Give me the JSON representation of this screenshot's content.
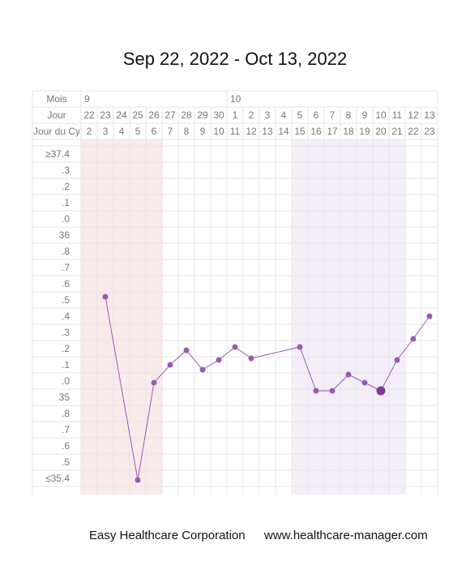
{
  "header": {
    "title": "Sep 22, 2022 - Oct 13, 2022"
  },
  "footer": {
    "company": "Easy Healthcare Corporation",
    "website": "www.healthcare-manager.com"
  },
  "colors": {
    "series": "#9b59b6",
    "period_band": "#fbeaea",
    "fertile_band": "#f3eef8",
    "grid": "#e6e6e6",
    "label": "#777777"
  },
  "chart_data": {
    "type": "line",
    "title": "Sep 22, 2022 - Oct 13, 2022",
    "row_labels": [
      "Mois",
      "Jour",
      "Jour du Cy"
    ],
    "month_labels": [
      {
        "col": 0,
        "label": "9"
      },
      {
        "col": 9,
        "label": "10"
      }
    ],
    "days": [
      "22",
      "23",
      "24",
      "25",
      "26",
      "27",
      "28",
      "29",
      "30",
      "1",
      "2",
      "3",
      "4",
      "5",
      "6",
      "7",
      "8",
      "9",
      "10",
      "11",
      "12",
      "13"
    ],
    "cycle_days": [
      "2",
      "3",
      "4",
      "5",
      "6",
      "7",
      "8",
      "9",
      "10",
      "11",
      "12",
      "13",
      "14",
      "15",
      "16",
      "17",
      "18",
      "19",
      "20",
      "21",
      "22",
      "23"
    ],
    "y_tick_labels": [
      "≥37.4",
      ".3",
      ".2",
      ".1",
      ".0",
      "36",
      ".8",
      ".7",
      ".6",
      ".5",
      ".4",
      ".3",
      ".2",
      ".1",
      ".0",
      "35",
      ".8",
      ".7",
      ".6",
      ".5",
      "≤35.4"
    ],
    "ylim": [
      35.4,
      37.4
    ],
    "series": [
      {
        "values": [
          null,
          36.52,
          null,
          35.39,
          35.99,
          36.1,
          36.19,
          36.07,
          36.13,
          36.21,
          36.14,
          null,
          null,
          36.21,
          35.94,
          35.94,
          36.04,
          35.99,
          35.94,
          36.13,
          36.26,
          36.4
        ],
        "highlight_index": 18
      }
    ],
    "shaded_ranges": [
      {
        "kind": "period",
        "from": 0,
        "to": 4
      },
      {
        "kind": "fertile",
        "from": 13,
        "to": 19
      }
    ],
    "grid": true
  }
}
